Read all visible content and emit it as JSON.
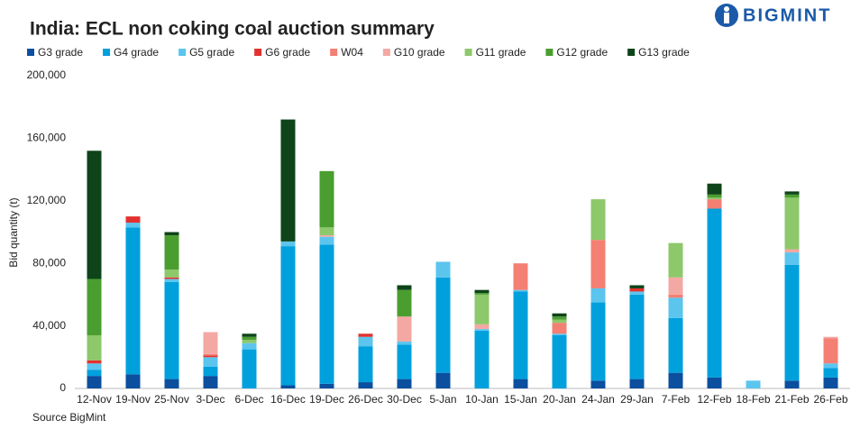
{
  "brand": "BIGMINT",
  "chart_data": {
    "type": "stacked-bar",
    "title": "India: ECL non coking coal auction summary",
    "y_label": "Bid quantity (t)",
    "source": "Source BigMint",
    "categories": [
      "12-Nov",
      "19-Nov",
      "25-Nov",
      "3-Dec",
      "6-Dec",
      "16-Dec",
      "19-Dec",
      "26-Dec",
      "30-Dec",
      "5-Jan",
      "10-Jan",
      "15-Jan",
      "20-Jan",
      "24-Jan",
      "29-Jan",
      "7-Feb",
      "12-Feb",
      "18-Feb",
      "21-Feb",
      "26-Feb"
    ],
    "series": [
      {
        "name": "G3 grade",
        "color": "#0b4f9e",
        "values": [
          8000,
          9000,
          6000,
          8000,
          0,
          2000,
          3000,
          4000,
          6000,
          10000,
          0,
          6000,
          0,
          5000,
          6000,
          10000,
          7000,
          0,
          5000,
          7000
        ]
      },
      {
        "name": "G4 grade",
        "color": "#00a0dd",
        "values": [
          4000,
          94000,
          62000,
          6000,
          25000,
          89000,
          89000,
          23000,
          22000,
          61000,
          37000,
          56000,
          34000,
          50000,
          54000,
          35000,
          108000,
          0,
          74000,
          6000
        ]
      },
      {
        "name": "G5 grade",
        "color": "#5bc5ee",
        "values": [
          4000,
          3000,
          2000,
          6000,
          4000,
          3000,
          5000,
          6000,
          2000,
          10000,
          1000,
          1000,
          1000,
          9000,
          2000,
          13000,
          0,
          5000,
          8000,
          3000
        ]
      },
      {
        "name": "G6 grade",
        "color": "#e3312f",
        "values": [
          2000,
          4000,
          1000,
          1000,
          0,
          0,
          0,
          2000,
          0,
          0,
          0,
          0,
          0,
          0,
          2000,
          0,
          0,
          0,
          0,
          0
        ]
      },
      {
        "name": "W04",
        "color": "#f47f73",
        "values": [
          0,
          0,
          0,
          1000,
          0,
          0,
          0,
          0,
          0,
          0,
          0,
          17000,
          7000,
          31000,
          0,
          2000,
          6000,
          0,
          0,
          16000
        ]
      },
      {
        "name": "G10 grade",
        "color": "#f4a8a3",
        "values": [
          0,
          0,
          0,
          14000,
          0,
          0,
          1000,
          0,
          16000,
          0,
          3000,
          0,
          0,
          0,
          0,
          11000,
          0,
          0,
          2000,
          1000
        ]
      },
      {
        "name": "G11 grade",
        "color": "#8dc86b",
        "values": [
          16000,
          0,
          5000,
          0,
          2000,
          0,
          5000,
          0,
          0,
          0,
          19000,
          0,
          2000,
          26000,
          0,
          22000,
          1000,
          0,
          33000,
          0
        ]
      },
      {
        "name": "G12 grade",
        "color": "#4a9e30",
        "values": [
          36000,
          0,
          22000,
          0,
          2000,
          0,
          36000,
          0,
          17000,
          0,
          1000,
          0,
          2000,
          0,
          0,
          0,
          2000,
          0,
          2000,
          0
        ]
      },
      {
        "name": "G13 grade",
        "color": "#0e4419",
        "values": [
          82000,
          0,
          2000,
          0,
          2000,
          78000,
          0,
          0,
          3000,
          0,
          2000,
          0,
          2000,
          0,
          2000,
          0,
          7000,
          0,
          2000,
          0
        ]
      }
    ],
    "ylim": [
      0,
      200000
    ],
    "yticks": [
      0,
      {
        "value": 40000,
        "label": "40,000"
      },
      {
        "value": 80000,
        "label": "80,000"
      },
      {
        "value": 120000,
        "label": "120,000"
      },
      {
        "value": 160000,
        "label": "160,000"
      },
      {
        "value": 200000,
        "label": "200,000"
      }
    ],
    "grid": false
  }
}
